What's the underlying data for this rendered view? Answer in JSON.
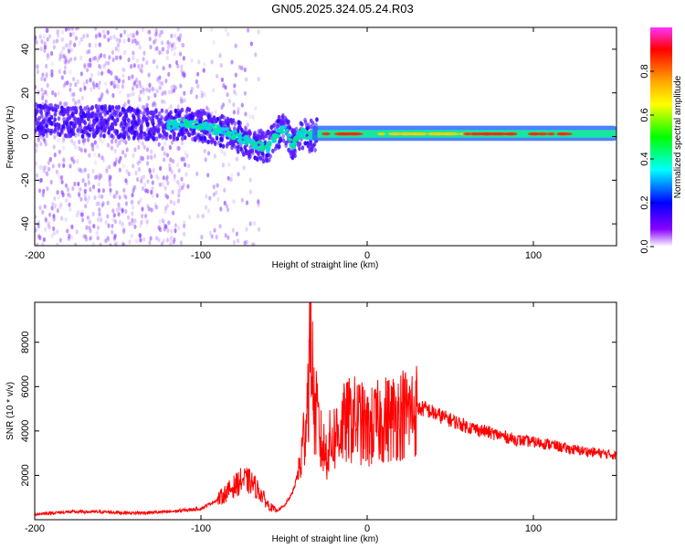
{
  "title": "GN05.2025.324.05.24.R03",
  "chart_data": [
    {
      "type": "heatmap",
      "name": "spectrogram",
      "xlabel": "Height of straight line (km)",
      "ylabel": "Frequency (Hz)",
      "xlim": [
        -200,
        150
      ],
      "ylim": [
        -50,
        50
      ],
      "xticks": [
        -200,
        -100,
        0,
        100
      ],
      "yticks": [
        -40,
        -20,
        0,
        20,
        40
      ],
      "ridge": [
        {
          "x": -200,
          "y": 8
        },
        {
          "x": -180,
          "y": 7
        },
        {
          "x": -160,
          "y": 7
        },
        {
          "x": -140,
          "y": 6
        },
        {
          "x": -120,
          "y": 5
        },
        {
          "x": -110,
          "y": 6
        },
        {
          "x": -100,
          "y": 5
        },
        {
          "x": -90,
          "y": 3
        },
        {
          "x": -80,
          "y": 1
        },
        {
          "x": -70,
          "y": -3
        },
        {
          "x": -60,
          "y": -5
        },
        {
          "x": -50,
          "y": 5
        },
        {
          "x": -45,
          "y": -4
        },
        {
          "x": -40,
          "y": 2
        },
        {
          "x": -35,
          "y": 0
        },
        {
          "x": -30,
          "y": 1
        },
        {
          "x": 0,
          "y": 1
        },
        {
          "x": 50,
          "y": 1
        },
        {
          "x": 100,
          "y": 1
        },
        {
          "x": 150,
          "y": 1
        }
      ],
      "colorbar": {
        "label": "Normalized spectral amplitude",
        "ticks": [
          0.0,
          0.2,
          0.4,
          0.6,
          0.8
        ],
        "range": [
          0,
          1
        ],
        "colors": [
          "#ff33ff",
          "#ff0000",
          "#ffaa00",
          "#ffff00",
          "#00ff00",
          "#00ffff",
          "#0000ff",
          "#8800ff",
          "#ffffff"
        ]
      }
    },
    {
      "type": "line",
      "name": "snr",
      "xlabel": "Height of straight line (km)",
      "ylabel": "SNR (10 * v/v)",
      "xlim": [
        -200,
        150
      ],
      "ylim": [
        0,
        9800
      ],
      "xticks": [
        -200,
        -100,
        0,
        100
      ],
      "yticks": [
        2000,
        4000,
        6000,
        8000
      ],
      "color": "#ff0000",
      "series": [
        {
          "name": "SNR",
          "x": [
            -200,
            -180,
            -160,
            -140,
            -120,
            -100,
            -90,
            -80,
            -75,
            -70,
            -65,
            -60,
            -55,
            -50,
            -45,
            -40,
            -37,
            -35,
            -34,
            -33,
            -32,
            -30,
            -28,
            -25,
            -22,
            -20,
            -15,
            -10,
            -5,
            0,
            5,
            10,
            15,
            20,
            25,
            30,
            35,
            40,
            50,
            60,
            70,
            80,
            90,
            100,
            110,
            120,
            130,
            140,
            150
          ],
          "y": [
            250,
            350,
            350,
            300,
            350,
            500,
            900,
            1500,
            1800,
            1700,
            1300,
            700,
            400,
            600,
            1200,
            2500,
            4500,
            6500,
            9800,
            7000,
            5000,
            4500,
            3500,
            3000,
            3500,
            3700,
            4200,
            4500,
            4500,
            4000,
            4300,
            4500,
            4600,
            4800,
            4800,
            5000,
            5000,
            4800,
            4500,
            4200,
            4000,
            3800,
            3600,
            3500,
            3400,
            3200,
            3100,
            3000,
            2900
          ]
        }
      ]
    }
  ]
}
